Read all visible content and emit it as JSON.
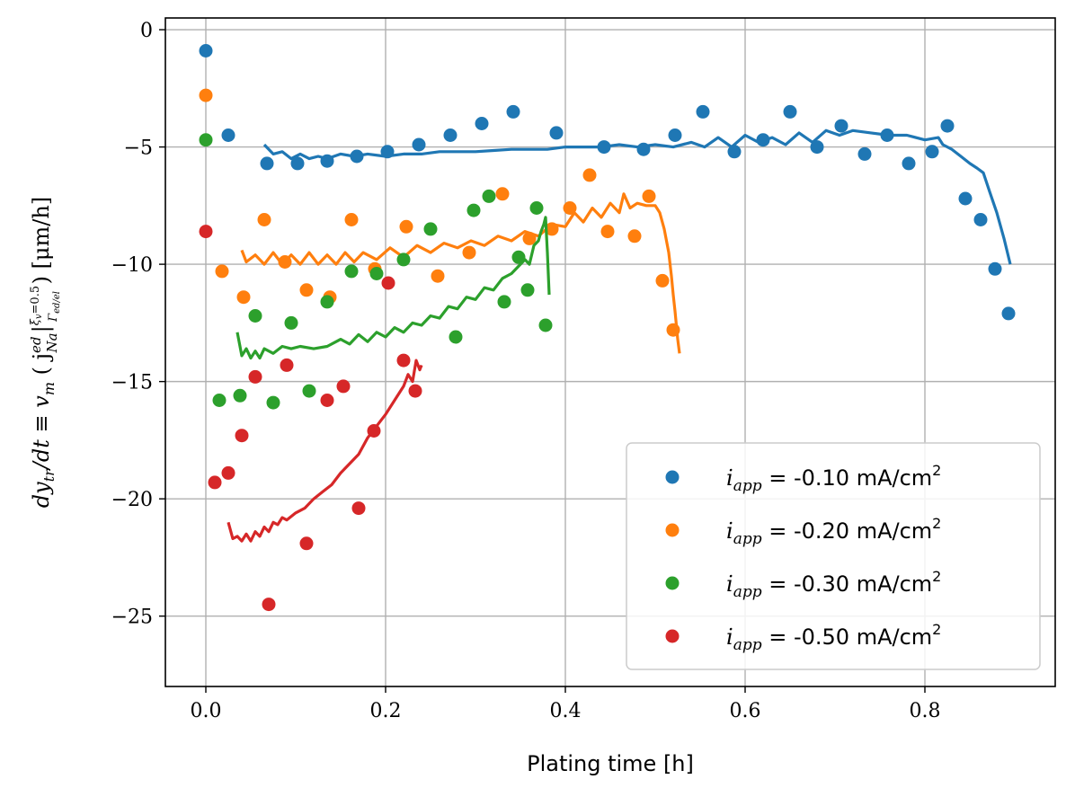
{
  "chart_data": {
    "type": "scatter",
    "title": "",
    "xlabel": "Plating time [h]",
    "ylabel": "dy_tr/dt ≡ v_m ( j^ed_Na |^{ξ_v=0.5}_{Γ_ed/el} ) [μm/h]",
    "xlim": [
      -0.045,
      0.945
    ],
    "ylim": [
      -28.0,
      0.5
    ],
    "grid": true,
    "legend_position": "bottom-right",
    "xticks": [
      "0.0",
      "0.2",
      "0.4",
      "0.6",
      "0.8"
    ],
    "yticks": [
      "0",
      "−5",
      "−10",
      "−15",
      "−20",
      "−25"
    ],
    "series": [
      {
        "name": "i_app = -0.10 mA/cm2",
        "legend_italic": "i",
        "legend_sub": "app",
        "legend_rest": " = -0.10 mA/cm",
        "legend_sup": "2",
        "color": "#1f77b4",
        "points": [
          [
            0.0,
            -0.9
          ],
          [
            0.025,
            -4.5
          ],
          [
            0.068,
            -5.7
          ],
          [
            0.102,
            -5.7
          ],
          [
            0.135,
            -5.6
          ],
          [
            0.168,
            -5.4
          ],
          [
            0.202,
            -5.2
          ],
          [
            0.237,
            -4.9
          ],
          [
            0.272,
            -4.5
          ],
          [
            0.307,
            -4.0
          ],
          [
            0.342,
            -3.5
          ],
          [
            0.39,
            -4.4
          ],
          [
            0.443,
            -5.0
          ],
          [
            0.487,
            -5.1
          ],
          [
            0.522,
            -4.5
          ],
          [
            0.553,
            -3.5
          ],
          [
            0.588,
            -5.2
          ],
          [
            0.62,
            -4.7
          ],
          [
            0.65,
            -3.5
          ],
          [
            0.68,
            -5.0
          ],
          [
            0.707,
            -4.1
          ],
          [
            0.733,
            -5.3
          ],
          [
            0.758,
            -4.5
          ],
          [
            0.782,
            -5.7
          ],
          [
            0.808,
            -5.2
          ],
          [
            0.825,
            -4.1
          ],
          [
            0.845,
            -7.2
          ],
          [
            0.862,
            -8.1
          ],
          [
            0.878,
            -10.2
          ],
          [
            0.893,
            -12.1
          ]
        ],
        "line": [
          [
            0.065,
            -4.9
          ],
          [
            0.075,
            -5.3
          ],
          [
            0.085,
            -5.2
          ],
          [
            0.095,
            -5.5
          ],
          [
            0.105,
            -5.3
          ],
          [
            0.115,
            -5.5
          ],
          [
            0.125,
            -5.4
          ],
          [
            0.135,
            -5.5
          ],
          [
            0.15,
            -5.3
          ],
          [
            0.165,
            -5.4
          ],
          [
            0.18,
            -5.3
          ],
          [
            0.2,
            -5.4
          ],
          [
            0.22,
            -5.3
          ],
          [
            0.24,
            -5.3
          ],
          [
            0.26,
            -5.2
          ],
          [
            0.28,
            -5.2
          ],
          [
            0.3,
            -5.2
          ],
          [
            0.32,
            -5.15
          ],
          [
            0.34,
            -5.1
          ],
          [
            0.36,
            -5.1
          ],
          [
            0.38,
            -5.1
          ],
          [
            0.4,
            -5.0
          ],
          [
            0.42,
            -5.0
          ],
          [
            0.44,
            -5.0
          ],
          [
            0.46,
            -4.9
          ],
          [
            0.48,
            -5.0
          ],
          [
            0.5,
            -4.9
          ],
          [
            0.52,
            -5.0
          ],
          [
            0.54,
            -4.8
          ],
          [
            0.555,
            -5.0
          ],
          [
            0.57,
            -4.6
          ],
          [
            0.585,
            -5.0
          ],
          [
            0.6,
            -4.5
          ],
          [
            0.615,
            -4.8
          ],
          [
            0.63,
            -4.6
          ],
          [
            0.645,
            -4.9
          ],
          [
            0.66,
            -4.4
          ],
          [
            0.675,
            -4.8
          ],
          [
            0.69,
            -4.3
          ],
          [
            0.705,
            -4.5
          ],
          [
            0.72,
            -4.3
          ],
          [
            0.74,
            -4.4
          ],
          [
            0.76,
            -4.5
          ],
          [
            0.78,
            -4.5
          ],
          [
            0.8,
            -4.7
          ],
          [
            0.815,
            -4.6
          ],
          [
            0.82,
            -4.9
          ],
          [
            0.83,
            -5.1
          ],
          [
            0.84,
            -5.4
          ],
          [
            0.85,
            -5.7
          ],
          [
            0.858,
            -5.9
          ],
          [
            0.865,
            -6.1
          ],
          [
            0.872,
            -6.9
          ],
          [
            0.88,
            -7.8
          ],
          [
            0.888,
            -8.9
          ],
          [
            0.895,
            -10.0
          ]
        ]
      },
      {
        "name": "i_app = -0.20 mA/cm2",
        "legend_italic": "i",
        "legend_sub": "app",
        "legend_rest": " = -0.20 mA/cm",
        "legend_sup": "2",
        "color": "#ff7f0e",
        "points": [
          [
            0.0,
            -2.8
          ],
          [
            0.018,
            -10.3
          ],
          [
            0.042,
            -11.4
          ],
          [
            0.065,
            -8.1
          ],
          [
            0.088,
            -9.9
          ],
          [
            0.112,
            -11.1
          ],
          [
            0.138,
            -11.4
          ],
          [
            0.162,
            -8.1
          ],
          [
            0.188,
            -10.2
          ],
          [
            0.223,
            -8.4
          ],
          [
            0.258,
            -10.5
          ],
          [
            0.293,
            -9.5
          ],
          [
            0.33,
            -7.0
          ],
          [
            0.36,
            -8.9
          ],
          [
            0.385,
            -8.5
          ],
          [
            0.405,
            -7.6
          ],
          [
            0.427,
            -6.2
          ],
          [
            0.447,
            -8.6
          ],
          [
            0.477,
            -8.8
          ],
          [
            0.493,
            -7.1
          ],
          [
            0.508,
            -10.7
          ],
          [
            0.52,
            -12.8
          ]
        ],
        "line": [
          [
            0.04,
            -9.4
          ],
          [
            0.045,
            -9.9
          ],
          [
            0.055,
            -9.6
          ],
          [
            0.065,
            -10.0
          ],
          [
            0.075,
            -9.5
          ],
          [
            0.085,
            -10.0
          ],
          [
            0.095,
            -9.6
          ],
          [
            0.105,
            -10.0
          ],
          [
            0.115,
            -9.5
          ],
          [
            0.125,
            -10.0
          ],
          [
            0.135,
            -9.6
          ],
          [
            0.145,
            -10.0
          ],
          [
            0.155,
            -9.5
          ],
          [
            0.165,
            -9.9
          ],
          [
            0.175,
            -9.5
          ],
          [
            0.19,
            -9.8
          ],
          [
            0.205,
            -9.3
          ],
          [
            0.22,
            -9.7
          ],
          [
            0.235,
            -9.2
          ],
          [
            0.25,
            -9.5
          ],
          [
            0.265,
            -9.1
          ],
          [
            0.28,
            -9.3
          ],
          [
            0.295,
            -9.0
          ],
          [
            0.31,
            -9.2
          ],
          [
            0.325,
            -8.8
          ],
          [
            0.34,
            -9.0
          ],
          [
            0.355,
            -8.6
          ],
          [
            0.37,
            -8.8
          ],
          [
            0.385,
            -8.3
          ],
          [
            0.4,
            -8.4
          ],
          [
            0.41,
            -7.8
          ],
          [
            0.42,
            -8.2
          ],
          [
            0.43,
            -7.6
          ],
          [
            0.44,
            -8.0
          ],
          [
            0.45,
            -7.4
          ],
          [
            0.46,
            -7.8
          ],
          [
            0.465,
            -7.0
          ],
          [
            0.472,
            -7.6
          ],
          [
            0.48,
            -7.4
          ],
          [
            0.49,
            -7.5
          ],
          [
            0.5,
            -7.5
          ],
          [
            0.505,
            -7.8
          ],
          [
            0.51,
            -8.5
          ],
          [
            0.515,
            -9.5
          ],
          [
            0.518,
            -10.5
          ],
          [
            0.52,
            -11.3
          ],
          [
            0.522,
            -12.0
          ],
          [
            0.525,
            -13.2
          ],
          [
            0.527,
            -13.8
          ]
        ]
      },
      {
        "name": "i_app = -0.30 mA/cm2",
        "legend_italic": "i",
        "legend_sub": "app",
        "legend_rest": " = -0.30 mA/cm",
        "legend_sup": "2",
        "color": "#2ca02c",
        "points": [
          [
            0.0,
            -4.7
          ],
          [
            0.015,
            -15.8
          ],
          [
            0.038,
            -15.6
          ],
          [
            0.055,
            -12.2
          ],
          [
            0.075,
            -15.9
          ],
          [
            0.095,
            -12.5
          ],
          [
            0.115,
            -15.4
          ],
          [
            0.135,
            -11.6
          ],
          [
            0.162,
            -10.3
          ],
          [
            0.19,
            -10.4
          ],
          [
            0.22,
            -9.8
          ],
          [
            0.25,
            -8.5
          ],
          [
            0.278,
            -13.1
          ],
          [
            0.298,
            -7.7
          ],
          [
            0.315,
            -7.1
          ],
          [
            0.332,
            -11.6
          ],
          [
            0.348,
            -9.7
          ],
          [
            0.358,
            -11.1
          ],
          [
            0.368,
            -7.6
          ],
          [
            0.378,
            -12.6
          ]
        ],
        "line": [
          [
            0.035,
            -12.9
          ],
          [
            0.04,
            -13.9
          ],
          [
            0.045,
            -13.6
          ],
          [
            0.05,
            -14.0
          ],
          [
            0.055,
            -13.7
          ],
          [
            0.06,
            -14.0
          ],
          [
            0.065,
            -13.6
          ],
          [
            0.075,
            -13.8
          ],
          [
            0.085,
            -13.5
          ],
          [
            0.095,
            -13.6
          ],
          [
            0.105,
            -13.5
          ],
          [
            0.12,
            -13.6
          ],
          [
            0.135,
            -13.5
          ],
          [
            0.15,
            -13.2
          ],
          [
            0.16,
            -13.4
          ],
          [
            0.17,
            -13.0
          ],
          [
            0.18,
            -13.3
          ],
          [
            0.19,
            -12.9
          ],
          [
            0.2,
            -13.1
          ],
          [
            0.21,
            -12.7
          ],
          [
            0.22,
            -12.9
          ],
          [
            0.23,
            -12.5
          ],
          [
            0.24,
            -12.6
          ],
          [
            0.25,
            -12.2
          ],
          [
            0.26,
            -12.3
          ],
          [
            0.27,
            -11.8
          ],
          [
            0.28,
            -11.9
          ],
          [
            0.29,
            -11.4
          ],
          [
            0.3,
            -11.5
          ],
          [
            0.31,
            -11.0
          ],
          [
            0.32,
            -11.1
          ],
          [
            0.33,
            -10.6
          ],
          [
            0.34,
            -10.4
          ],
          [
            0.35,
            -10.0
          ],
          [
            0.355,
            -9.8
          ],
          [
            0.36,
            -10.0
          ],
          [
            0.365,
            -9.2
          ],
          [
            0.37,
            -9.0
          ],
          [
            0.373,
            -8.6
          ],
          [
            0.376,
            -8.3
          ],
          [
            0.378,
            -8.0
          ],
          [
            0.38,
            -9.5
          ],
          [
            0.382,
            -11.3
          ]
        ]
      },
      {
        "name": "i_app = -0.50 mA/cm2",
        "legend_italic": "i",
        "legend_sub": "app",
        "legend_rest": " = -0.50 mA/cm",
        "legend_sup": "2",
        "color": "#d62728",
        "points": [
          [
            0.0,
            -8.6
          ],
          [
            0.01,
            -19.3
          ],
          [
            0.025,
            -18.9
          ],
          [
            0.04,
            -17.3
          ],
          [
            0.055,
            -14.8
          ],
          [
            0.07,
            -24.5
          ],
          [
            0.09,
            -14.3
          ],
          [
            0.112,
            -21.9
          ],
          [
            0.135,
            -15.8
          ],
          [
            0.153,
            -15.2
          ],
          [
            0.17,
            -20.4
          ],
          [
            0.187,
            -17.1
          ],
          [
            0.203,
            -10.8
          ],
          [
            0.22,
            -14.1
          ],
          [
            0.233,
            -15.4
          ]
        ],
        "line": [
          [
            0.025,
            -21.0
          ],
          [
            0.03,
            -21.7
          ],
          [
            0.035,
            -21.6
          ],
          [
            0.04,
            -21.8
          ],
          [
            0.045,
            -21.5
          ],
          [
            0.05,
            -21.8
          ],
          [
            0.055,
            -21.4
          ],
          [
            0.06,
            -21.6
          ],
          [
            0.065,
            -21.2
          ],
          [
            0.07,
            -21.4
          ],
          [
            0.075,
            -21.0
          ],
          [
            0.08,
            -21.1
          ],
          [
            0.085,
            -20.8
          ],
          [
            0.09,
            -20.9
          ],
          [
            0.1,
            -20.6
          ],
          [
            0.11,
            -20.4
          ],
          [
            0.12,
            -20.0
          ],
          [
            0.13,
            -19.7
          ],
          [
            0.14,
            -19.4
          ],
          [
            0.15,
            -18.9
          ],
          [
            0.16,
            -18.5
          ],
          [
            0.17,
            -18.1
          ],
          [
            0.18,
            -17.4
          ],
          [
            0.19,
            -16.9
          ],
          [
            0.2,
            -16.4
          ],
          [
            0.21,
            -15.8
          ],
          [
            0.22,
            -15.2
          ],
          [
            0.225,
            -14.7
          ],
          [
            0.23,
            -15.0
          ],
          [
            0.234,
            -14.1
          ],
          [
            0.238,
            -14.5
          ],
          [
            0.24,
            -14.3
          ]
        ]
      }
    ]
  }
}
